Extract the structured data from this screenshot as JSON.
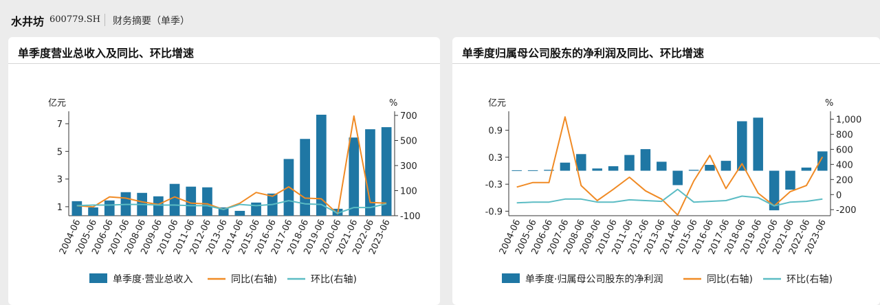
{
  "header": {
    "company": "水井坊",
    "code": "600779.SH",
    "subtitle": "财务摘要（单季）"
  },
  "colors": {
    "bar": "#1f77a4",
    "yoy": "#f08a24",
    "qoq": "#5bbcc4"
  },
  "charts": [
    {
      "title": "单季度营业总收入及同比、环比增速",
      "chart_data": {
        "type": "bar",
        "categories": [
          "2004-06",
          "2005-06",
          "2006-06",
          "2007-06",
          "2008-06",
          "2009-06",
          "2010-06",
          "2011-06",
          "2012-06",
          "2013-06",
          "2014-06",
          "2015-06",
          "2016-06",
          "2017-06",
          "2018-06",
          "2019-06",
          "2020-06",
          "2021-06",
          "2022-06",
          "2023-06"
        ],
        "left_unit": "亿元",
        "right_unit": "%",
        "left_ticks": [
          1,
          3,
          5,
          7
        ],
        "left_tick_labels": [
          "1",
          "3",
          "5",
          "7"
        ],
        "left_range": [
          0.35,
          7.6
        ],
        "right_ticks": [
          -100,
          100,
          300,
          500,
          700
        ],
        "right_tick_labels": [
          "-100",
          "100",
          "300",
          "500",
          "700"
        ],
        "right_range": [
          -100,
          700
        ],
        "series": [
          {
            "name": "单季度·营业总收入",
            "type": "bar",
            "axis": "left",
            "values": [
              1.4,
              0.95,
              1.45,
              2.05,
              2.0,
              1.75,
              2.65,
              2.45,
              2.4,
              0.95,
              0.7,
              1.3,
              1.95,
              4.45,
              5.9,
              7.65,
              0.85,
              6.0,
              6.6,
              6.75
            ]
          },
          {
            "name": "同比(右轴)",
            "type": "line",
            "axis": "right",
            "values": [
              -20,
              -30,
              50,
              40,
              10,
              -10,
              50,
              0,
              -5,
              -50,
              0,
              85,
              55,
              130,
              40,
              35,
              -85,
              695,
              5,
              0
            ]
          },
          {
            "name": "环比(右轴)",
            "type": "line",
            "axis": "right",
            "values": [
              -20,
              -15,
              -15,
              -10,
              -10,
              -15,
              -15,
              -20,
              -20,
              -50,
              -10,
              -20,
              -10,
              20,
              -5,
              -10,
              -80,
              -35,
              -35,
              -5
            ]
          }
        ]
      }
    },
    {
      "title": "单季度归属母公司股东的净利润及同比、环比增速",
      "chart_data": {
        "type": "bar",
        "categories": [
          "2004-06",
          "2005-06",
          "2006-06",
          "2007-06",
          "2008-06",
          "2009-06",
          "2010-06",
          "2011-06",
          "2012-06",
          "2013-06",
          "2014-06",
          "2015-06",
          "2016-06",
          "2017-06",
          "2018-06",
          "2019-06",
          "2020-06",
          "2021-06",
          "2022-06",
          "2023-06"
        ],
        "left_unit": "亿元",
        "right_unit": "%",
        "left_ticks": [
          -0.9,
          -0.3,
          0.3,
          0.9
        ],
        "left_tick_labels": [
          "-0.9",
          "-0.3",
          "0.3",
          "0.9"
        ],
        "left_range": [
          -1.0,
          1.23
        ],
        "right_ticks": [
          -200,
          0,
          200,
          400,
          600,
          800,
          1000
        ],
        "right_tick_labels": [
          "-200",
          "0",
          "200",
          "400",
          "600",
          "800",
          "1,000"
        ],
        "right_range": [
          -280,
          1050
        ],
        "series": [
          {
            "name": "单季度·归属母公司股东的净利润",
            "type": "bar",
            "axis": "left",
            "values": [
              0.01,
              0.01,
              0.02,
              0.18,
              0.37,
              0.05,
              0.1,
              0.35,
              0.48,
              0.2,
              -0.32,
              0.02,
              0.13,
              0.22,
              1.1,
              1.18,
              -0.88,
              -0.42,
              0.07,
              0.43
            ]
          },
          {
            "name": "同比(右轴)",
            "type": "line",
            "axis": "right",
            "values": [
              100,
              160,
              160,
              1030,
              120,
              -80,
              70,
              230,
              50,
              -60,
              -270,
              180,
              520,
              80,
              410,
              20,
              -150,
              40,
              120,
              500
            ]
          },
          {
            "name": "环比(右轴)",
            "type": "line",
            "axis": "right",
            "values": [
              -110,
              -100,
              -100,
              -60,
              -60,
              -100,
              -100,
              -70,
              -80,
              -90,
              70,
              -100,
              -90,
              -80,
              -20,
              -40,
              -150,
              -100,
              -90,
              -60
            ]
          }
        ]
      }
    }
  ]
}
